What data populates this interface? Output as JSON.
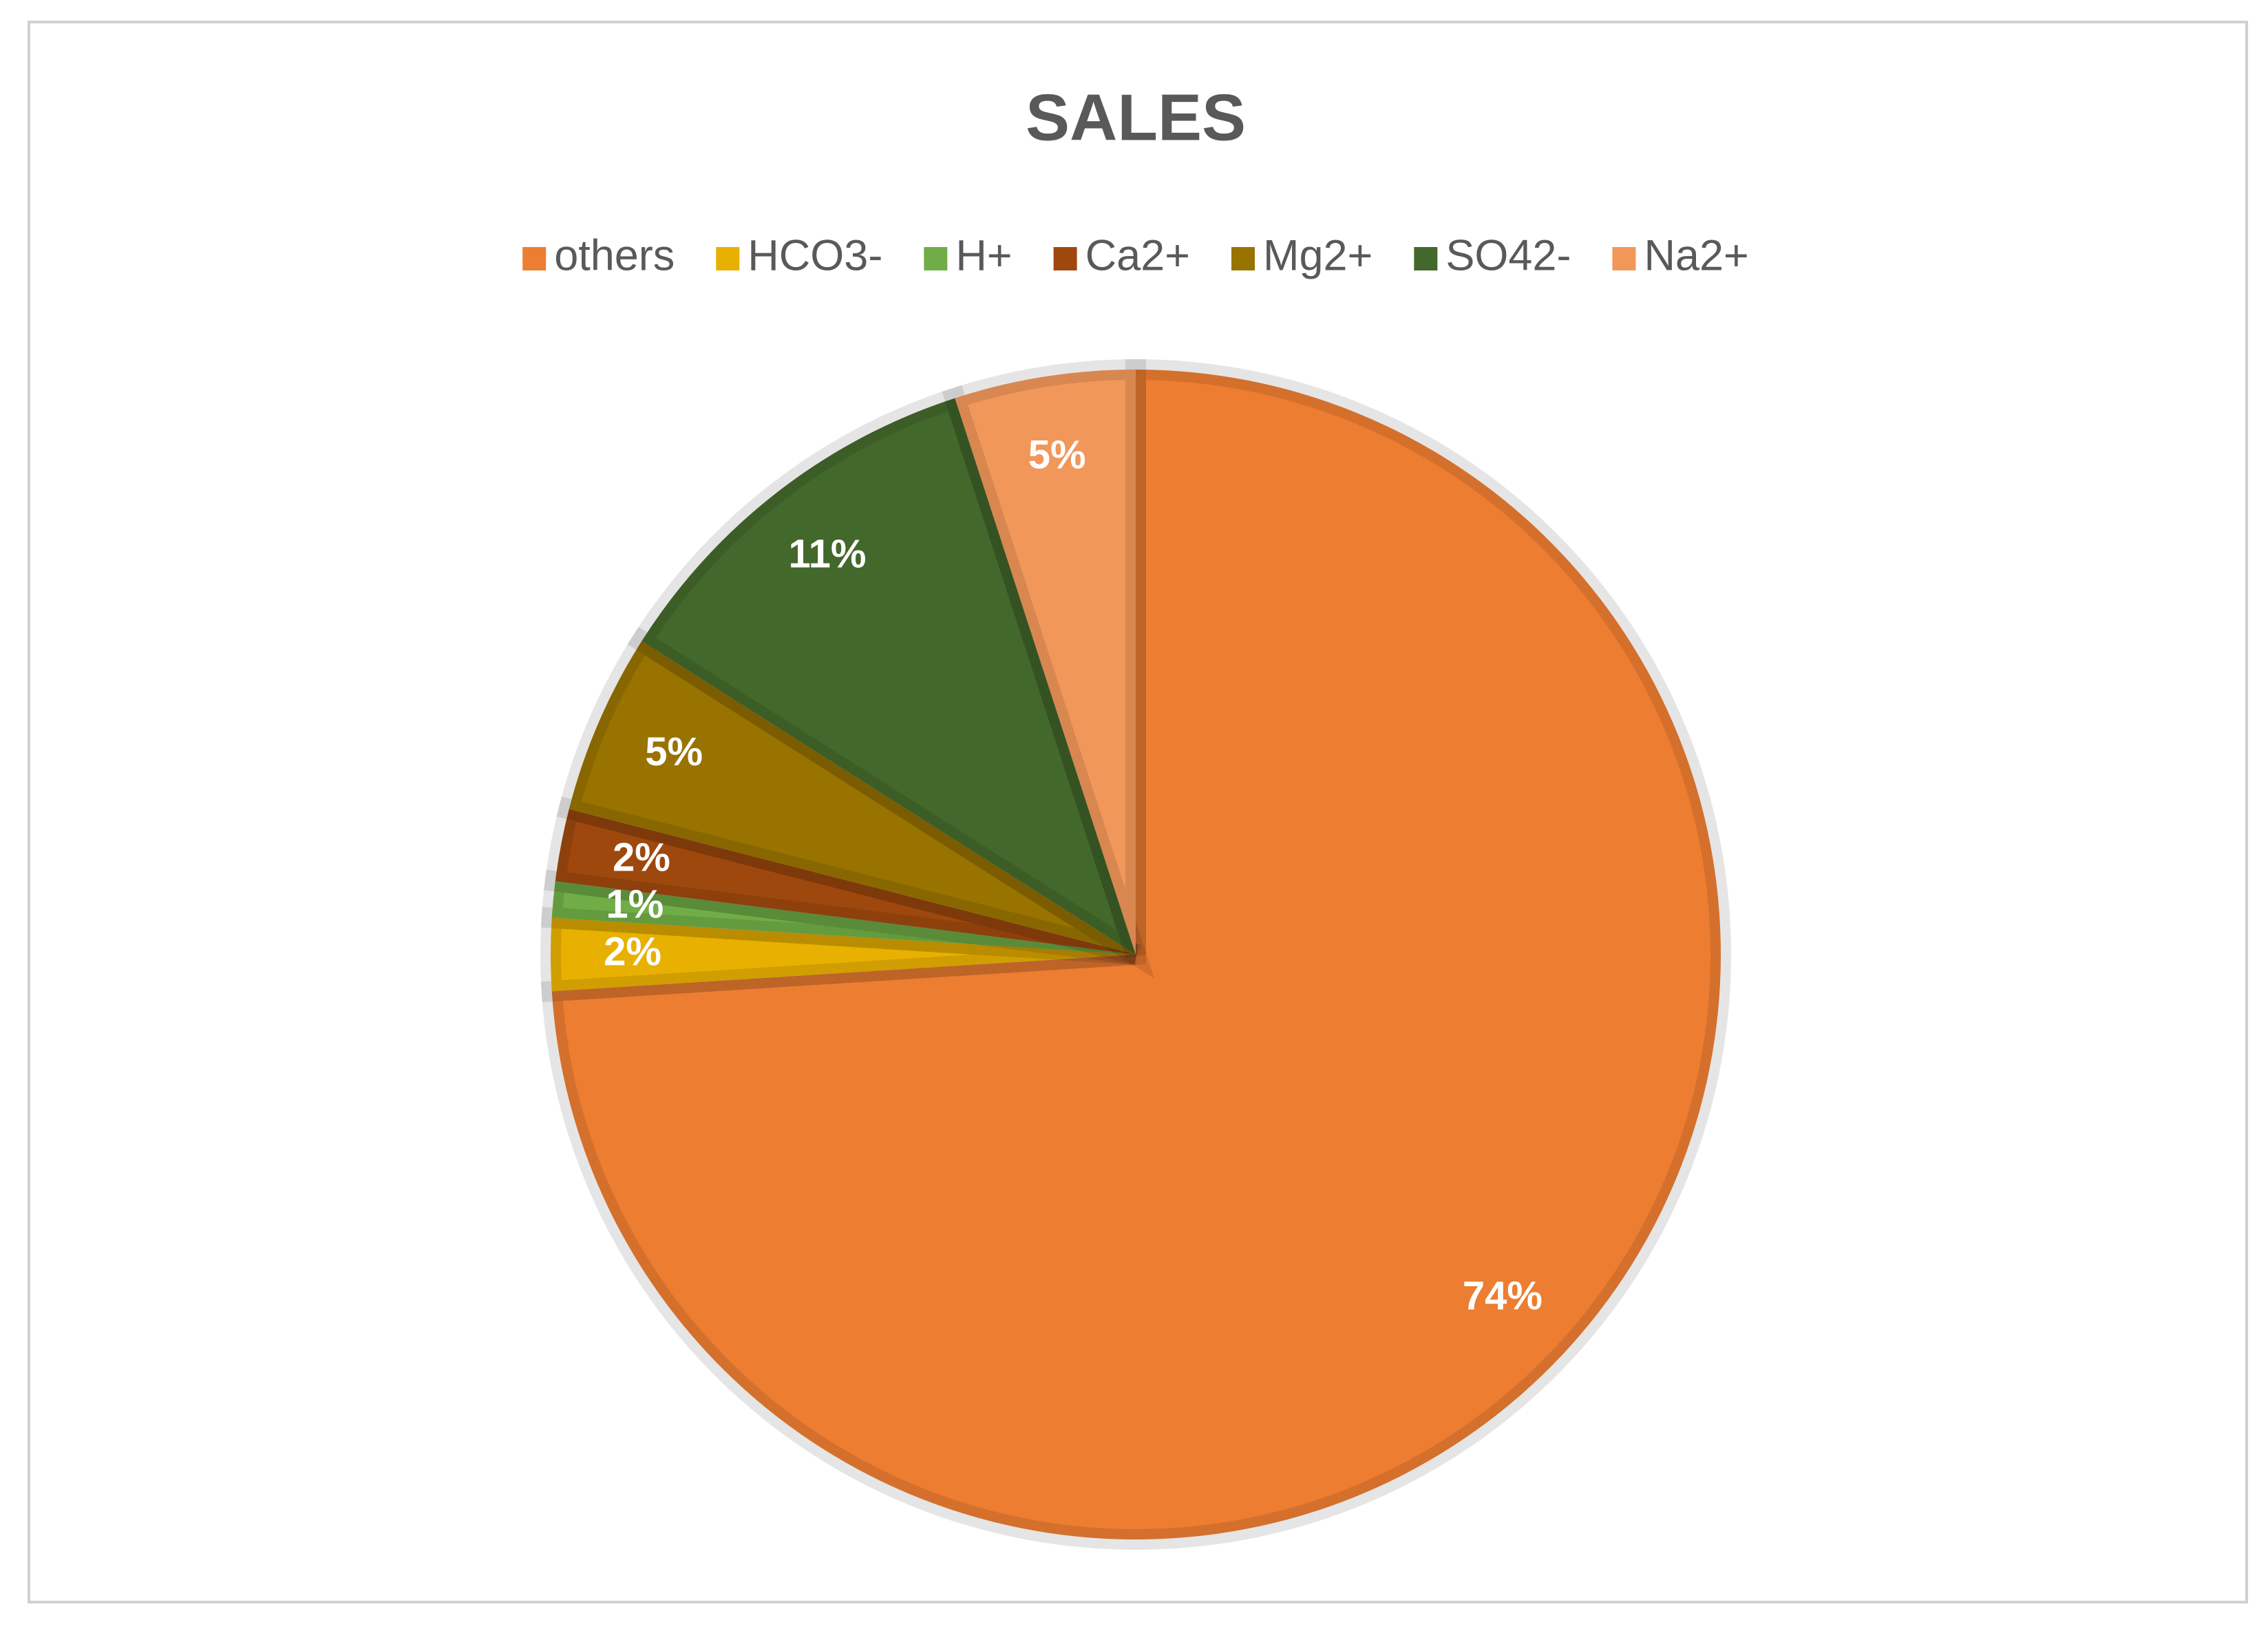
{
  "chart_data": {
    "type": "pie",
    "title": "SALES",
    "categories": [
      "others",
      "HCO3-",
      "H+",
      "Ca2+",
      "Mg2+",
      "SO42-",
      "Na2+"
    ],
    "values": [
      74,
      2,
      1,
      2,
      5,
      11,
      5
    ],
    "value_labels": [
      "74%",
      "2%",
      "1%",
      "2%",
      "5%",
      "11%",
      "5%"
    ],
    "colors": [
      "#ED7D31",
      "#E8B000",
      "#70AD47",
      "#9E480E",
      "#997300",
      "#43682B",
      "#F1975A"
    ],
    "legend": "top"
  }
}
